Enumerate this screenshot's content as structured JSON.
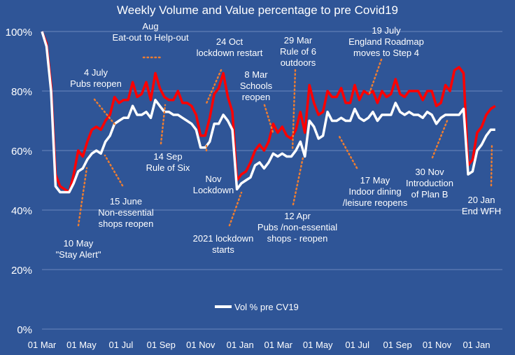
{
  "chart_data": {
    "type": "line",
    "title": "Weekly Volume and Value percentage to pre Covid19",
    "xlabel": "",
    "ylabel": "",
    "ylim": [
      0,
      100
    ],
    "grid": true,
    "legend_position": "bottom-center",
    "y_ticks": [
      "0%",
      "20%",
      "40%",
      "60%",
      "80%",
      "100%"
    ],
    "x_ticks": [
      "01 Mar",
      "01 May",
      "01 Jul",
      "01 Sep",
      "01 Nov",
      "01 Jan",
      "01 Mar",
      "01 May",
      "01 Jul",
      "01 Sep",
      "01 Nov",
      "01 Jan"
    ],
    "colors": {
      "background": "#2f5597",
      "value_line": "#ff0000",
      "volume_line": "#ffffff",
      "annotation_dots": "#ed7d31"
    },
    "series": [
      {
        "name": "",
        "color": "#ff0000",
        "points": [
          [
            "2020-03-01",
            100
          ],
          [
            "2020-03-08",
            96
          ],
          [
            "2020-03-15",
            82
          ],
          [
            "2020-03-22",
            52
          ],
          [
            "2020-03-29",
            48
          ],
          [
            "2020-04-05",
            47
          ],
          [
            "2020-04-12",
            46
          ],
          [
            "2020-04-19",
            52
          ],
          [
            "2020-04-26",
            60
          ],
          [
            "2020-05-03",
            58
          ],
          [
            "2020-05-10",
            63
          ],
          [
            "2020-05-17",
            67
          ],
          [
            "2020-05-24",
            68
          ],
          [
            "2020-05-31",
            67
          ],
          [
            "2020-06-07",
            70
          ],
          [
            "2020-06-14",
            72
          ],
          [
            "2020-06-21",
            78
          ],
          [
            "2020-06-28",
            76
          ],
          [
            "2020-07-05",
            77
          ],
          [
            "2020-07-12",
            77
          ],
          [
            "2020-07-19",
            83
          ],
          [
            "2020-07-26",
            78
          ],
          [
            "2020-08-02",
            79
          ],
          [
            "2020-08-09",
            83
          ],
          [
            "2020-08-16",
            77
          ],
          [
            "2020-08-23",
            86
          ],
          [
            "2020-08-30",
            81
          ],
          [
            "2020-09-06",
            78
          ],
          [
            "2020-09-13",
            77
          ],
          [
            "2020-09-20",
            77
          ],
          [
            "2020-09-27",
            80
          ],
          [
            "2020-10-04",
            76
          ],
          [
            "2020-10-11",
            76
          ],
          [
            "2020-10-18",
            75
          ],
          [
            "2020-10-25",
            72
          ],
          [
            "2020-11-01",
            65
          ],
          [
            "2020-11-08",
            65
          ],
          [
            "2020-11-15",
            71
          ],
          [
            "2020-11-22",
            79
          ],
          [
            "2020-11-29",
            81
          ],
          [
            "2020-12-06",
            86
          ],
          [
            "2020-12-13",
            78
          ],
          [
            "2020-12-20",
            73
          ],
          [
            "2020-12-27",
            50
          ],
          [
            "2021-01-03",
            52
          ],
          [
            "2021-01-10",
            53
          ],
          [
            "2021-01-17",
            56
          ],
          [
            "2021-01-24",
            60
          ],
          [
            "2021-01-31",
            62
          ],
          [
            "2021-02-07",
            60
          ],
          [
            "2021-02-14",
            63
          ],
          [
            "2021-02-21",
            69
          ],
          [
            "2021-02-28",
            66
          ],
          [
            "2021-03-07",
            68
          ],
          [
            "2021-03-14",
            65
          ],
          [
            "2021-03-21",
            64
          ],
          [
            "2021-03-28",
            67
          ],
          [
            "2021-04-04",
            73
          ],
          [
            "2021-04-11",
            66
          ],
          [
            "2021-04-18",
            82
          ],
          [
            "2021-04-25",
            76
          ],
          [
            "2021-05-02",
            72
          ],
          [
            "2021-05-09",
            73
          ],
          [
            "2021-05-16",
            80
          ],
          [
            "2021-05-23",
            78
          ],
          [
            "2021-05-30",
            78
          ],
          [
            "2021-06-06",
            81
          ],
          [
            "2021-06-13",
            76
          ],
          [
            "2021-06-20",
            76
          ],
          [
            "2021-06-27",
            82
          ],
          [
            "2021-07-04",
            77
          ],
          [
            "2021-07-11",
            80
          ],
          [
            "2021-07-18",
            79
          ],
          [
            "2021-07-25",
            80
          ],
          [
            "2021-08-01",
            76
          ],
          [
            "2021-08-08",
            80
          ],
          [
            "2021-08-15",
            78
          ],
          [
            "2021-08-22",
            79
          ],
          [
            "2021-08-29",
            84
          ],
          [
            "2021-09-05",
            79
          ],
          [
            "2021-09-12",
            78
          ],
          [
            "2021-09-19",
            80
          ],
          [
            "2021-09-26",
            80
          ],
          [
            "2021-10-03",
            80
          ],
          [
            "2021-10-10",
            77
          ],
          [
            "2021-10-17",
            80
          ],
          [
            "2021-10-24",
            80
          ],
          [
            "2021-10-31",
            75
          ],
          [
            "2021-11-07",
            76
          ],
          [
            "2021-11-14",
            82
          ],
          [
            "2021-11-21",
            80
          ],
          [
            "2021-11-28",
            87
          ],
          [
            "2021-12-05",
            88
          ],
          [
            "2021-12-12",
            86
          ],
          [
            "2021-12-19",
            55
          ],
          [
            "2021-12-26",
            57
          ],
          [
            "2022-01-02",
            66
          ],
          [
            "2022-01-09",
            68
          ],
          [
            "2022-01-16",
            72
          ],
          [
            "2022-01-23",
            74
          ],
          [
            "2022-01-30",
            75
          ]
        ]
      },
      {
        "name": "Vol % pre CV19",
        "color": "#ffffff",
        "points": [
          [
            "2020-03-01",
            100
          ],
          [
            "2020-03-08",
            95
          ],
          [
            "2020-03-15",
            80
          ],
          [
            "2020-03-22",
            48
          ],
          [
            "2020-03-29",
            46
          ],
          [
            "2020-04-05",
            46
          ],
          [
            "2020-04-12",
            46
          ],
          [
            "2020-04-19",
            49
          ],
          [
            "2020-04-26",
            53
          ],
          [
            "2020-05-03",
            54
          ],
          [
            "2020-05-10",
            57
          ],
          [
            "2020-05-17",
            59
          ],
          [
            "2020-05-24",
            60
          ],
          [
            "2020-05-31",
            59
          ],
          [
            "2020-06-07",
            63
          ],
          [
            "2020-06-14",
            65
          ],
          [
            "2020-06-21",
            69
          ],
          [
            "2020-06-28",
            70
          ],
          [
            "2020-07-05",
            71
          ],
          [
            "2020-07-12",
            71
          ],
          [
            "2020-07-19",
            75
          ],
          [
            "2020-07-26",
            72
          ],
          [
            "2020-08-02",
            72
          ],
          [
            "2020-08-09",
            73
          ],
          [
            "2020-08-16",
            71
          ],
          [
            "2020-08-23",
            77
          ],
          [
            "2020-08-30",
            75
          ],
          [
            "2020-09-06",
            73
          ],
          [
            "2020-09-13",
            73
          ],
          [
            "2020-09-20",
            72
          ],
          [
            "2020-09-27",
            72
          ],
          [
            "2020-10-04",
            71
          ],
          [
            "2020-10-11",
            70
          ],
          [
            "2020-10-18",
            69
          ],
          [
            "2020-10-25",
            67
          ],
          [
            "2020-11-01",
            61
          ],
          [
            "2020-11-08",
            61
          ],
          [
            "2020-11-15",
            63
          ],
          [
            "2020-11-22",
            69
          ],
          [
            "2020-11-29",
            69
          ],
          [
            "2020-12-06",
            72
          ],
          [
            "2020-12-13",
            70
          ],
          [
            "2020-12-20",
            67
          ],
          [
            "2020-12-27",
            47
          ],
          [
            "2021-01-03",
            49
          ],
          [
            "2021-01-10",
            50
          ],
          [
            "2021-01-17",
            51
          ],
          [
            "2021-01-24",
            55
          ],
          [
            "2021-01-31",
            56
          ],
          [
            "2021-02-07",
            54
          ],
          [
            "2021-02-14",
            56
          ],
          [
            "2021-02-21",
            59
          ],
          [
            "2021-02-28",
            58
          ],
          [
            "2021-03-07",
            59
          ],
          [
            "2021-03-14",
            58
          ],
          [
            "2021-03-21",
            58
          ],
          [
            "2021-03-28",
            60
          ],
          [
            "2021-04-04",
            63
          ],
          [
            "2021-04-11",
            58
          ],
          [
            "2021-04-18",
            70
          ],
          [
            "2021-04-25",
            68
          ],
          [
            "2021-05-02",
            64
          ],
          [
            "2021-05-09",
            65
          ],
          [
            "2021-05-16",
            73
          ],
          [
            "2021-05-23",
            70
          ],
          [
            "2021-05-30",
            70
          ],
          [
            "2021-06-06",
            71
          ],
          [
            "2021-06-13",
            70
          ],
          [
            "2021-06-20",
            70
          ],
          [
            "2021-06-27",
            74
          ],
          [
            "2021-07-04",
            71
          ],
          [
            "2021-07-11",
            70
          ],
          [
            "2021-07-18",
            71
          ],
          [
            "2021-07-25",
            73
          ],
          [
            "2021-08-01",
            70
          ],
          [
            "2021-08-08",
            72
          ],
          [
            "2021-08-15",
            72
          ],
          [
            "2021-08-22",
            72
          ],
          [
            "2021-08-29",
            76
          ],
          [
            "2021-09-05",
            73
          ],
          [
            "2021-09-12",
            72
          ],
          [
            "2021-09-19",
            73
          ],
          [
            "2021-09-26",
            72
          ],
          [
            "2021-10-03",
            72
          ],
          [
            "2021-10-10",
            71
          ],
          [
            "2021-10-17",
            73
          ],
          [
            "2021-10-24",
            72
          ],
          [
            "2021-10-31",
            69
          ],
          [
            "2021-11-07",
            71
          ],
          [
            "2021-11-14",
            72
          ],
          [
            "2021-11-21",
            72
          ],
          [
            "2021-11-28",
            72
          ],
          [
            "2021-12-05",
            72
          ],
          [
            "2021-12-12",
            74
          ],
          [
            "2021-12-19",
            52
          ],
          [
            "2021-12-26",
            53
          ],
          [
            "2022-01-02",
            60
          ],
          [
            "2022-01-09",
            62
          ],
          [
            "2022-01-16",
            65
          ],
          [
            "2022-01-23",
            67
          ],
          [
            "2022-01-30",
            67
          ]
        ]
      }
    ],
    "annotations": [
      {
        "lines": [
          "10 May",
          "\"Stay Alert\""
        ],
        "date": "2020-05-10"
      },
      {
        "lines": [
          "15 June",
          "Non-essential",
          "shops reopen"
        ],
        "date": "2020-06-15"
      },
      {
        "lines": [
          "4 July",
          "Pubs reopen"
        ],
        "date": "2020-07-04"
      },
      {
        "lines": [
          "Aug",
          "Eat-out to Help-out"
        ],
        "date": "2020-08-15"
      },
      {
        "lines": [
          "14 Sep",
          "Rule of Six"
        ],
        "date": "2020-09-14"
      },
      {
        "lines": [
          "24 Oct",
          "lockdown restart"
        ],
        "date": "2020-10-24"
      },
      {
        "lines": [
          "Nov",
          "Lockdown"
        ],
        "date": "2020-11-15"
      },
      {
        "lines": [
          "2021 lockdown",
          "starts"
        ],
        "date": "2021-01-04"
      },
      {
        "lines": [
          "8 Mar",
          "Schools",
          "reopen"
        ],
        "date": "2021-03-08"
      },
      {
        "lines": [
          "29 Mar",
          "Rule of 6",
          "outdoors"
        ],
        "date": "2021-03-29"
      },
      {
        "lines": [
          "12 Apr",
          "Pubs /non-essential",
          "shops - reopen"
        ],
        "date": "2021-04-12"
      },
      {
        "lines": [
          "17 May",
          "Indoor dining",
          "/leisure reopens"
        ],
        "date": "2021-05-17"
      },
      {
        "lines": [
          "19 July",
          "England Roadmap",
          "moves to Step 4"
        ],
        "date": "2021-07-19"
      },
      {
        "lines": [
          "30 Nov",
          "Introduction",
          "of Plan B"
        ],
        "date": "2021-11-30"
      },
      {
        "lines": [
          "20 Jan",
          "End WFH"
        ],
        "date": "2022-01-20"
      }
    ]
  }
}
